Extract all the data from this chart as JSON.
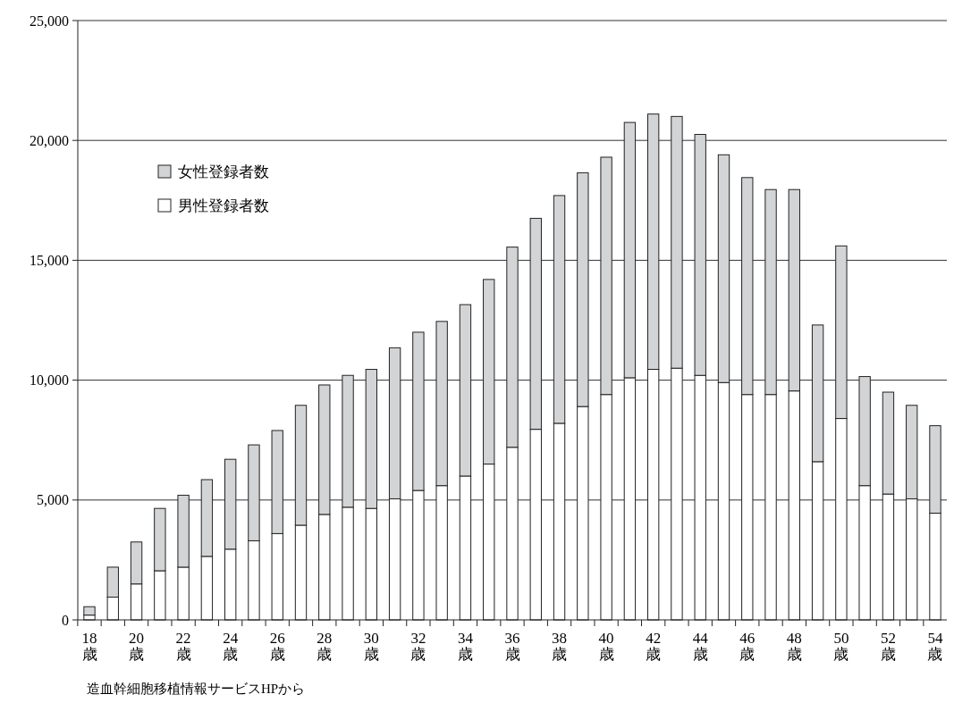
{
  "chart_data": {
    "type": "bar",
    "stacked": true,
    "categories": [
      "18歳",
      null,
      "20歳",
      null,
      "22歳",
      null,
      "24歳",
      null,
      "26歳",
      null,
      "28歳",
      null,
      "30歳",
      null,
      "32歳",
      null,
      "34歳",
      null,
      "36歳",
      null,
      "38歳",
      null,
      "40歳",
      null,
      "42歳",
      null,
      "44歳",
      null,
      "46歳",
      null,
      "48歳",
      null,
      "50歳",
      null,
      "52歳",
      null,
      "54歳"
    ],
    "series": [
      {
        "name": "男性登録者数",
        "color": "#ffffff",
        "values": [
          200,
          950,
          1500,
          2050,
          2200,
          2650,
          2950,
          3300,
          3600,
          3950,
          4400,
          4700,
          4650,
          5050,
          5400,
          5600,
          6000,
          6500,
          7200,
          7950,
          8200,
          8900,
          9400,
          10100,
          10450,
          10500,
          10200,
          9900,
          9400,
          9400,
          9550,
          6600,
          8400,
          5600,
          5250,
          5050,
          4450
        ]
      },
      {
        "name": "女性登録者数",
        "color": "#d3d4d6",
        "values": [
          350,
          1250,
          1750,
          2600,
          3000,
          3200,
          3750,
          4000,
          4300,
          5000,
          5400,
          5500,
          5800,
          6300,
          6600,
          6850,
          7150,
          7700,
          8350,
          8800,
          9500,
          9750,
          9900,
          10650,
          10650,
          10500,
          10050,
          9500,
          9050,
          8550,
          8400,
          5700,
          7200,
          4550,
          4250,
          3900,
          3650
        ]
      }
    ],
    "ylim": [
      0,
      25000
    ],
    "yticks": [
      {
        "value": 0,
        "label": "0"
      },
      {
        "value": 5000,
        "label": "5,000"
      },
      {
        "value": 10000,
        "label": "10,000"
      },
      {
        "value": 15000,
        "label": "15,000"
      },
      {
        "value": 20000,
        "label": "20,000"
      },
      {
        "value": 25000,
        "label": "25,000"
      }
    ],
    "grid": "y",
    "legend": "top left",
    "annotations": [
      "造血幹細胞移植情報サービスHPから"
    ]
  }
}
